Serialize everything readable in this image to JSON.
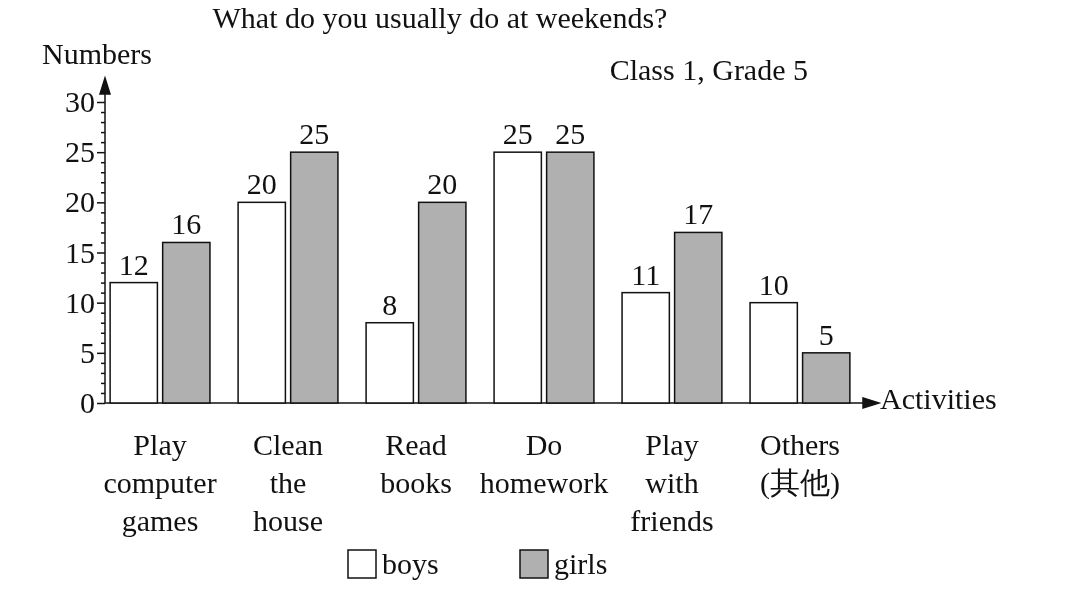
{
  "chart_data": {
    "type": "bar",
    "title": "What do you usually do at weekends?",
    "subtitle": "Class 1, Grade 5",
    "xlabel": "Activities",
    "ylabel": "Numbers",
    "categories": [
      "Play computer games",
      "Clean the house",
      "Read books",
      "Do homework",
      "Play with friends",
      "Others (其他)"
    ],
    "series": [
      {
        "name": "boys",
        "color": "#ffffff",
        "values": [
          12,
          20,
          8,
          25,
          11,
          10
        ]
      },
      {
        "name": "girls",
        "color": "#b0b0b0",
        "values": [
          16,
          25,
          20,
          25,
          17,
          5
        ]
      }
    ],
    "ylim": [
      0,
      30
    ],
    "yticks": [
      0,
      {
        "value": 1,
        "label": null
      },
      {
        "value": 2,
        "label": null
      },
      {
        "value": 3,
        "label": null
      },
      {
        "value": 4,
        "label": null
      },
      5,
      {
        "value": 6,
        "label": null
      },
      {
        "value": 7,
        "label": null
      },
      {
        "value": 8,
        "label": null
      },
      {
        "value": 9,
        "label": null
      },
      10,
      {
        "value": 11,
        "label": null
      },
      {
        "value": 12,
        "label": null
      },
      {
        "value": 13,
        "label": null
      },
      {
        "value": 14,
        "label": null
      },
      15,
      {
        "value": 16,
        "label": null
      },
      {
        "value": 17,
        "label": null
      },
      {
        "value": 18,
        "label": null
      },
      {
        "value": 19,
        "label": null
      },
      20,
      {
        "value": 21,
        "label": null
      },
      {
        "value": 22,
        "label": null
      },
      {
        "value": 23,
        "label": null
      },
      {
        "value": 24,
        "label": null
      },
      25,
      {
        "value": 26,
        "label": null
      },
      {
        "value": 27,
        "label": null
      },
      {
        "value": 28,
        "label": null
      },
      {
        "value": 29,
        "label": null
      },
      30
    ],
    "data_labels": true,
    "legend": "bottom"
  }
}
